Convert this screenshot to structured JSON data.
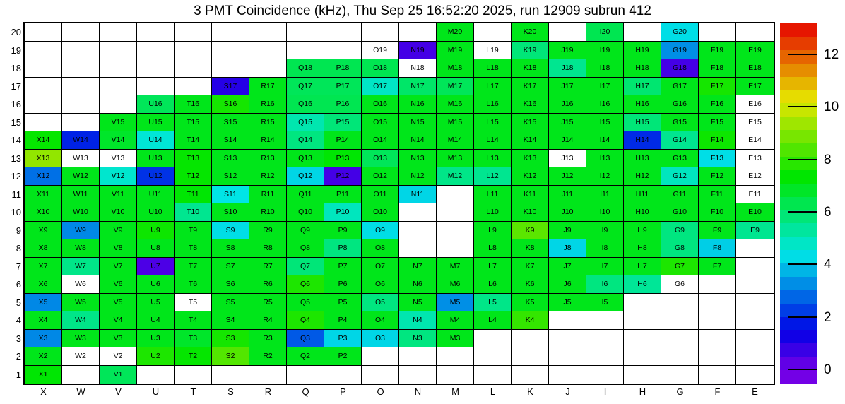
{
  "title": "3 PMT Coincidence (kHz), Thu Sep 25 16:52:20 2025, run 12909 subrun 412",
  "chart_data": {
    "type": "heatmap",
    "title": "3 PMT Coincidence (kHz), Thu Sep 25 16:52:20 2025, run 12909 subrun 412",
    "unit": "kHz",
    "run": "12909",
    "subrun": "412",
    "timestamp": "Thu Sep 25 16:52:20 2025",
    "columns": [
      "X",
      "W",
      "V",
      "U",
      "T",
      "S",
      "R",
      "Q",
      "P",
      "O",
      "N",
      "M",
      "L",
      "K",
      "J",
      "I",
      "H",
      "G",
      "F",
      "E"
    ],
    "rows": [
      20,
      19,
      18,
      17,
      16,
      15,
      14,
      13,
      12,
      11,
      10,
      9,
      8,
      7,
      6,
      5,
      4,
      3,
      2,
      1
    ],
    "cell_value_encoding": "number = rate in kHz (colored), \"nd\" = labeled cell with no data (white), null = no channel (blank)",
    "cells": [
      [
        null,
        null,
        null,
        null,
        null,
        null,
        null,
        null,
        null,
        null,
        null,
        7,
        null,
        7,
        null,
        6.3,
        null,
        4.3,
        null,
        null
      ],
      [
        null,
        null,
        null,
        null,
        null,
        null,
        null,
        null,
        null,
        "nd",
        0.6,
        7,
        "nd",
        5.8,
        7,
        7,
        7,
        3.3,
        7,
        7
      ],
      [
        null,
        null,
        null,
        null,
        null,
        null,
        null,
        6.3,
        6.3,
        6.3,
        "nd",
        7,
        7,
        7,
        5.5,
        7,
        7,
        0.6,
        7,
        7
      ],
      [
        null,
        null,
        null,
        null,
        null,
        1.0,
        7,
        6.2,
        6.2,
        4.8,
        6.0,
        6.2,
        7,
        7,
        7,
        7,
        5.9,
        7,
        7.6,
        7
      ],
      [
        null,
        null,
        null,
        6.2,
        7,
        7.6,
        7,
        6.3,
        6.3,
        7,
        7,
        7,
        7,
        7,
        7,
        7,
        7,
        7,
        7,
        "nd"
      ],
      [
        null,
        null,
        7,
        7,
        7,
        7,
        7,
        5.1,
        5.8,
        7,
        7,
        7,
        7,
        7,
        7,
        7,
        5.8,
        7,
        7,
        "nd"
      ],
      [
        7.4,
        1.9,
        6.8,
        4.6,
        7,
        7,
        7,
        5.7,
        7,
        7,
        7,
        7,
        7,
        7,
        7,
        7,
        2.0,
        5.5,
        7.5,
        "nd"
      ],
      [
        9.2,
        "nd",
        "nd",
        7,
        7.4,
        7,
        7,
        7,
        7.3,
        6.2,
        7,
        7,
        7,
        7,
        "nd",
        7,
        7,
        7,
        4.3,
        "nd"
      ],
      [
        2.9,
        7,
        4.7,
        2.1,
        7.4,
        7,
        7,
        4.2,
        0.6,
        7,
        7,
        5.6,
        5.5,
        7,
        7,
        7,
        7,
        4.9,
        7,
        "nd"
      ],
      [
        7,
        7,
        7,
        7,
        7.3,
        4.4,
        7,
        7,
        7,
        7,
        4.2,
        null,
        7,
        7,
        7,
        7,
        7,
        7,
        7,
        "nd"
      ],
      [
        7,
        7,
        7,
        7,
        5.5,
        7,
        7,
        7,
        4.9,
        7,
        null,
        null,
        7,
        7,
        7,
        7,
        7,
        7,
        7,
        7
      ],
      [
        7,
        3.2,
        7,
        7.5,
        7,
        4.3,
        7,
        7,
        7,
        4.3,
        null,
        null,
        7,
        8.5,
        7,
        7,
        7,
        5.7,
        7,
        5.5
      ],
      [
        7,
        7,
        7,
        7,
        7,
        7,
        7,
        7,
        5.7,
        7,
        null,
        null,
        7,
        7,
        4.2,
        7,
        7,
        5.7,
        4.1,
        null
      ],
      [
        7,
        5.6,
        7,
        0.5,
        7,
        7,
        7,
        5.8,
        7,
        7,
        7,
        7,
        7,
        7,
        7,
        7,
        7,
        7.7,
        7,
        null
      ],
      [
        7,
        "nd",
        7,
        7,
        7,
        7,
        7,
        7.7,
        7,
        7,
        7,
        7,
        7,
        7,
        7,
        5.7,
        5.4,
        "nd",
        null,
        null
      ],
      [
        3.2,
        7,
        7,
        7,
        "nd",
        7,
        7,
        7,
        7,
        5.7,
        7,
        3.3,
        5.6,
        7,
        7,
        7,
        null,
        null,
        null,
        null
      ],
      [
        7,
        5.6,
        7,
        7,
        7,
        7,
        7,
        7.7,
        7,
        7,
        5.1,
        7,
        7,
        8.0,
        null,
        null,
        null,
        null,
        null,
        null
      ],
      [
        3.2,
        7,
        7,
        7,
        6.8,
        7.6,
        7,
        2.6,
        4.2,
        4.2,
        5.7,
        7,
        null,
        null,
        null,
        null,
        null,
        null,
        null,
        null
      ],
      [
        7,
        "nd",
        "nd",
        7.7,
        7.4,
        8.4,
        7,
        7,
        7,
        null,
        null,
        null,
        null,
        null,
        null,
        null,
        null,
        null,
        null,
        null
      ],
      [
        7.3,
        null,
        6.2,
        null,
        null,
        null,
        null,
        null,
        null,
        null,
        null,
        null,
        null,
        null,
        null,
        null,
        null,
        null,
        null,
        null
      ]
    ],
    "colorbar": {
      "orientation": "vertical",
      "position": "right",
      "min": 0,
      "max": 13.2,
      "ticks": [
        0,
        2,
        4,
        6,
        8,
        10,
        12
      ],
      "bands": 27,
      "palette": "rainbow (violet=0 through blue, cyan, green, yellow, orange to red=max)",
      "color_violet": "#5c00e6",
      "color_blue": "#0040f2",
      "color_cyan": "#00e0f0",
      "color_green": "#00e61a",
      "color_yellow": "#e6e600",
      "color_red": "#e60000"
    },
    "grid": "on",
    "xlabel": "",
    "ylabel": ""
  }
}
